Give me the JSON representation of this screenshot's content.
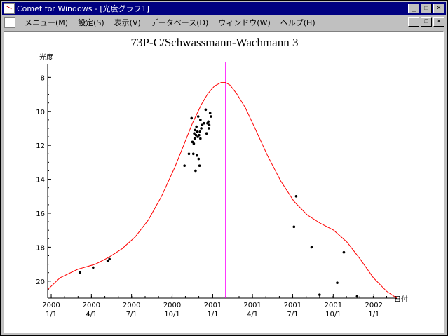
{
  "window": {
    "title": "Comet for Windows - [光度グラフ1]"
  },
  "window_buttons": {
    "minimize": "_",
    "restore": "❐",
    "close": "×"
  },
  "menu": {
    "items": [
      "メニュー(M)",
      "設定(S)",
      "表示(V)",
      "データベース(D)",
      "ウィンドウ(W)",
      "ヘルプ(H)"
    ]
  },
  "chart_data": {
    "type": "scatter",
    "title": "73P-C/Schwassmann-Wachmann 3",
    "xlabel": "日付",
    "ylabel": "光度",
    "ylim": [
      21,
      7.2
    ],
    "y_ticks": [
      8,
      10,
      12,
      14,
      16,
      18,
      20
    ],
    "x_ticks": [
      {
        "year": "2000",
        "md": "1/1",
        "t": 0
      },
      {
        "year": "2000",
        "md": "4/1",
        "t": 91
      },
      {
        "year": "2000",
        "md": "7/1",
        "t": 182
      },
      {
        "year": "2000",
        "md": "10/1",
        "t": 274
      },
      {
        "year": "2001",
        "md": "1/1",
        "t": 366
      },
      {
        "year": "2001",
        "md": "4/1",
        "t": 456
      },
      {
        "year": "2001",
        "md": "7/1",
        "t": 547
      },
      {
        "year": "2001",
        "md": "10/1",
        "t": 639
      },
      {
        "year": "2002",
        "md": "1/1",
        "t": 731
      }
    ],
    "xlim": [
      -8,
      783
    ],
    "perihelion_t": 395,
    "series": [
      {
        "type": "line",
        "color": "#ff0000",
        "x": [
          -8,
          20,
          60,
          100,
          130,
          160,
          190,
          220,
          250,
          280,
          300,
          320,
          340,
          355,
          370,
          385,
          395,
          405,
          420,
          440,
          460,
          490,
          520,
          550,
          580,
          610,
          640,
          670,
          700,
          730,
          760,
          783
        ],
        "y": [
          20.5,
          19.8,
          19.3,
          19.0,
          18.6,
          18.1,
          17.4,
          16.4,
          15.0,
          13.3,
          12.0,
          10.7,
          9.6,
          8.95,
          8.5,
          8.3,
          8.3,
          8.45,
          8.95,
          9.8,
          10.9,
          12.6,
          14.1,
          15.3,
          16.1,
          16.6,
          17.0,
          17.7,
          18.7,
          19.8,
          20.6,
          21.0
        ]
      },
      {
        "type": "scatter",
        "color": "#000000",
        "x": [
          65,
          95,
          128,
          132,
          302,
          312,
          318,
          320,
          322,
          323,
          324,
          325,
          326,
          327,
          328,
          329,
          330,
          331,
          332,
          333,
          334,
          335,
          336,
          337,
          338,
          338,
          340,
          342,
          346,
          350,
          352,
          354,
          356,
          357,
          358,
          360,
          362,
          550,
          555,
          590,
          608,
          648,
          663,
          693
        ],
        "y": [
          19.5,
          19.2,
          18.8,
          18.7,
          13.2,
          12.5,
          10.4,
          11.8,
          12.5,
          11.9,
          11.3,
          11.6,
          11.1,
          13.5,
          11.4,
          10.9,
          12.6,
          11.2,
          11.5,
          10.3,
          12.8,
          11.4,
          13.2,
          11.2,
          11.6,
          10.5,
          11.0,
          10.8,
          10.7,
          9.9,
          11.3,
          10.7,
          10.6,
          11.0,
          10.8,
          10.1,
          10.3,
          16.8,
          15.0,
          18.0,
          20.8,
          20.1,
          18.3,
          20.9
        ]
      }
    ],
    "vline_color": "#ff00ff"
  }
}
